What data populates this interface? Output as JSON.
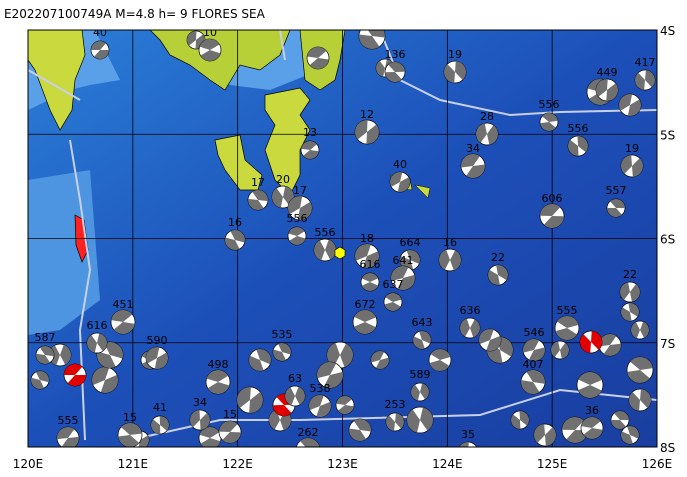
{
  "header": {
    "title": "E202207100749A  M=4.8  h=   9  FLORES SEA"
  },
  "map": {
    "lon_labels": [
      "120E",
      "121E",
      "122E",
      "123E",
      "124E",
      "125E",
      "126E"
    ],
    "lat_labels": [
      "4S",
      "5S",
      "6S",
      "7S",
      "8S"
    ]
  },
  "events": [
    {
      "depth": "40"
    },
    {
      "depth": "136"
    },
    {
      "depth": "19"
    },
    {
      "depth": "12"
    },
    {
      "depth": "13"
    },
    {
      "depth": "17"
    },
    {
      "depth": "20"
    },
    {
      "depth": "17"
    },
    {
      "depth": "556"
    },
    {
      "depth": "16"
    },
    {
      "depth": "556"
    },
    {
      "depth": "18"
    },
    {
      "depth": "616"
    },
    {
      "depth": "664"
    },
    {
      "depth": "16"
    },
    {
      "depth": "641"
    },
    {
      "depth": "637"
    },
    {
      "depth": "22"
    },
    {
      "depth": "28"
    },
    {
      "depth": "34"
    },
    {
      "depth": "556"
    },
    {
      "depth": "556"
    },
    {
      "depth": "19"
    },
    {
      "depth": "606"
    },
    {
      "depth": "557"
    },
    {
      "depth": "417"
    },
    {
      "depth": "449"
    },
    {
      "depth": "451"
    },
    {
      "depth": "587"
    },
    {
      "depth": "616"
    },
    {
      "depth": "590"
    },
    {
      "depth": "498"
    },
    {
      "depth": "535"
    },
    {
      "depth": "63"
    },
    {
      "depth": "538"
    },
    {
      "depth": "672"
    },
    {
      "depth": "643"
    },
    {
      "depth": "636"
    },
    {
      "depth": "546"
    },
    {
      "depth": "555"
    },
    {
      "depth": "529"
    },
    {
      "depth": "22"
    },
    {
      "depth": "555"
    },
    {
      "depth": "15"
    },
    {
      "depth": "41"
    },
    {
      "depth": "34"
    },
    {
      "depth": "15"
    },
    {
      "depth": "262"
    },
    {
      "depth": "253"
    },
    {
      "depth": "35"
    },
    {
      "depth": "36"
    },
    {
      "depth": "407"
    },
    {
      "depth": "589"
    },
    {
      "depth": "40"
    },
    {
      "depth": "10"
    }
  ]
}
